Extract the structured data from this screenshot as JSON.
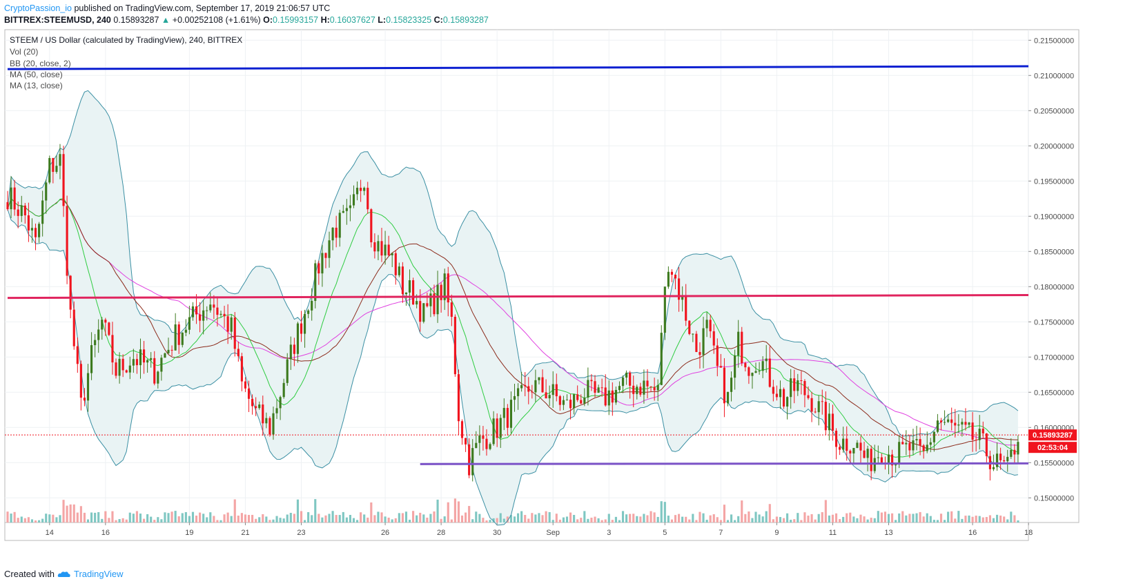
{
  "header": {
    "author": "CryptoPassion_io",
    "published_text": "published on TradingView.com, September 17, 2019 21:06:57 UTC",
    "symbol": "BITTREX:STEEMUSD, 240",
    "last": "0.15893287",
    "change": "+0.00252108 (+1.61%)",
    "open_label": "O:",
    "open": "0.15993157",
    "high_label": "H:",
    "high": "0.16037627",
    "low_label": "L:",
    "low": "0.15823325",
    "close_label": "C:",
    "close": "0.15893287"
  },
  "legend": {
    "title": "STEEM / US Dollar (calculated by TradingView), 240, BITTREX",
    "items": [
      "Vol (20)",
      "BB (20, close, 2)",
      "MA (50, close)",
      "MA (13, close)"
    ]
  },
  "footer": {
    "created_with": "Created with",
    "brand": "TradingView"
  },
  "colors": {
    "bull": "#3d7a1e",
    "bear": "#f0141e",
    "bb": "#3a8fa3",
    "bb_fill": "#e9f3f4",
    "ma13": "#2ecc40",
    "ma30": "#8b2a1a",
    "ma50": "#e040e0",
    "blue_line": "#0b1fd1",
    "red_line": "#e0245e",
    "purple_line": "#7b52c7",
    "vol_up": "#7fc7c2",
    "vol_down": "#f4a5a5"
  },
  "price_label": "0.15893287",
  "countdown_label": "02:53:04",
  "chart_data": {
    "type": "candlestick",
    "title": "STEEM / US Dollar (calculated by TradingView), 240, BITTREX",
    "ylim": [
      0.1465,
      0.2165
    ],
    "y_ticks": [
      "0.15000000",
      "0.15500000",
      "0.16000000",
      "0.16500000",
      "0.17000000",
      "0.17500000",
      "0.18000000",
      "0.18500000",
      "0.19000000",
      "0.19500000",
      "0.20000000",
      "0.20500000",
      "0.21000000",
      "0.21500000"
    ],
    "x_ticks": [
      {
        "label": "14",
        "i": 12
      },
      {
        "label": "16",
        "i": 28
      },
      {
        "label": "19",
        "i": 52
      },
      {
        "label": "21",
        "i": 68
      },
      {
        "label": "23",
        "i": 84
      },
      {
        "label": "26",
        "i": 108
      },
      {
        "label": "28",
        "i": 124
      },
      {
        "label": "30",
        "i": 140
      },
      {
        "label": "Sep",
        "i": 156
      },
      {
        "label": "3",
        "i": 172
      },
      {
        "label": "5",
        "i": 188
      },
      {
        "label": "7",
        "i": 204
      },
      {
        "label": "9",
        "i": 220
      },
      {
        "label": "11",
        "i": 236
      },
      {
        "label": "13",
        "i": 252
      },
      {
        "label": "16",
        "i": 276
      },
      {
        "label": "18",
        "i": 292
      }
    ],
    "candles_count": 290,
    "anchors": [
      [
        0,
        0.193
      ],
      [
        5,
        0.19
      ],
      [
        8,
        0.186
      ],
      [
        12,
        0.197
      ],
      [
        15,
        0.198
      ],
      [
        18,
        0.176
      ],
      [
        21,
        0.163
      ],
      [
        24,
        0.17
      ],
      [
        27,
        0.175
      ],
      [
        31,
        0.168
      ],
      [
        36,
        0.17
      ],
      [
        42,
        0.168
      ],
      [
        48,
        0.173
      ],
      [
        54,
        0.176
      ],
      [
        58,
        0.178
      ],
      [
        61,
        0.176
      ],
      [
        64,
        0.174
      ],
      [
        67,
        0.166
      ],
      [
        71,
        0.162
      ],
      [
        75,
        0.16
      ],
      [
        78,
        0.165
      ],
      [
        82,
        0.172
      ],
      [
        86,
        0.178
      ],
      [
        89,
        0.183
      ],
      [
        93,
        0.188
      ],
      [
        98,
        0.19
      ],
      [
        102,
        0.196
      ],
      [
        104,
        0.188
      ],
      [
        106,
        0.186
      ],
      [
        110,
        0.184
      ],
      [
        113,
        0.18
      ],
      [
        116,
        0.179
      ],
      [
        119,
        0.176
      ],
      [
        122,
        0.178
      ],
      [
        125,
        0.18
      ],
      [
        127,
        0.175
      ],
      [
        129,
        0.162
      ],
      [
        132,
        0.155
      ],
      [
        135,
        0.158
      ],
      [
        140,
        0.16
      ],
      [
        145,
        0.163
      ],
      [
        150,
        0.166
      ],
      [
        155,
        0.165
      ],
      [
        160,
        0.163
      ],
      [
        165,
        0.165
      ],
      [
        170,
        0.164
      ],
      [
        176,
        0.166
      ],
      [
        182,
        0.166
      ],
      [
        186,
        0.165
      ],
      [
        187,
        0.174
      ],
      [
        189,
        0.184
      ],
      [
        191,
        0.181
      ],
      [
        194,
        0.176
      ],
      [
        197,
        0.171
      ],
      [
        200,
        0.174
      ],
      [
        203,
        0.168
      ],
      [
        206,
        0.164
      ],
      [
        209,
        0.172
      ],
      [
        212,
        0.169
      ],
      [
        215,
        0.17
      ],
      [
        218,
        0.167
      ],
      [
        222,
        0.164
      ],
      [
        226,
        0.166
      ],
      [
        230,
        0.164
      ],
      [
        234,
        0.161
      ],
      [
        238,
        0.158
      ],
      [
        242,
        0.158
      ],
      [
        246,
        0.155
      ],
      [
        250,
        0.157
      ],
      [
        254,
        0.156
      ],
      [
        258,
        0.157
      ],
      [
        262,
        0.156
      ],
      [
        266,
        0.161
      ],
      [
        270,
        0.16
      ],
      [
        274,
        0.159
      ],
      [
        278,
        0.158
      ],
      [
        282,
        0.155
      ],
      [
        286,
        0.154
      ],
      [
        289,
        0.159
      ]
    ],
    "levels": [
      {
        "name": "blue",
        "y_start": 0.2109,
        "y_end": 0.2113,
        "i_start": 0,
        "i_end": 289
      },
      {
        "name": "red",
        "y_start": 0.1784,
        "y_end": 0.1788,
        "i_start": 0,
        "i_end": 289
      },
      {
        "name": "purple",
        "y_start": 0.1548,
        "y_end": 0.1549,
        "i_start": 118,
        "i_end": 289
      }
    ],
    "last_price": 0.15893287
  }
}
